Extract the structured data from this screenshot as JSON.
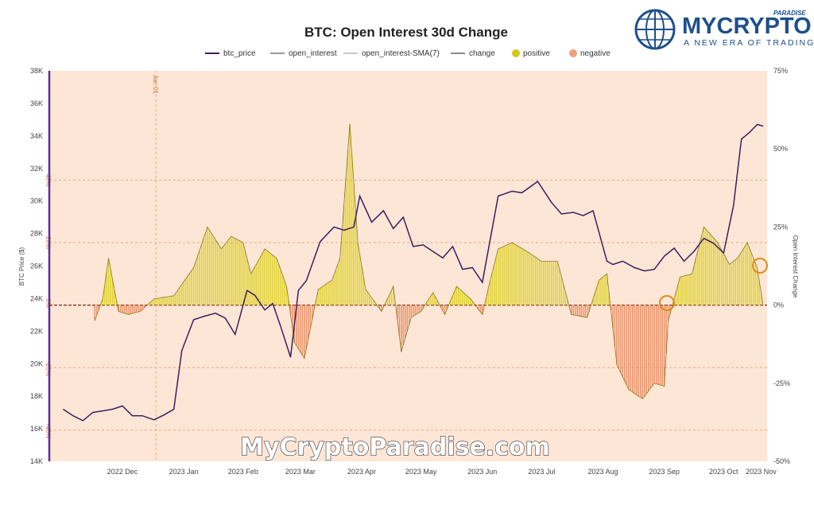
{
  "chart_data": {
    "type": "line",
    "title": "BTC: Open Interest 30d Change",
    "legend": [
      {
        "name": "btc_price",
        "color": "#3d1f5c",
        "kind": "line"
      },
      {
        "name": "open_interest",
        "color": "#9a9aa2",
        "kind": "line"
      },
      {
        "name": "open_interest-SMA(7)",
        "color": "#c8c8c8",
        "kind": "line"
      },
      {
        "name": "change",
        "color": "#8a8a8a",
        "kind": "line"
      },
      {
        "name": "positive",
        "color": "#d4c41a",
        "kind": "dot"
      },
      {
        "name": "negative",
        "color": "#f0a080",
        "kind": "dot"
      }
    ],
    "legend_position": "top-center",
    "ylabel_left": "BTC Price ($)",
    "ylabel_right": "Open Interest Change",
    "ylim_left": [
      14000,
      38000
    ],
    "ylim_right": [
      -50,
      75
    ],
    "left_ticks": [
      "38K",
      "36K",
      "34K",
      "32K",
      "30K",
      "28K",
      "26K",
      "24K",
      "22K",
      "20K",
      "18K",
      "16K",
      "14K"
    ],
    "right_ticks": [
      "75%",
      "50%",
      "25%",
      "0%",
      "-25%",
      "-50%"
    ],
    "x_ticks": [
      "2022 Dec",
      "2023 Jan",
      "2023 Feb",
      "2023 Mar",
      "2023 Apr",
      "2023 May",
      "2023 Jun",
      "2023 Jul",
      "2023 Aug",
      "2023 Sep",
      "2023 Oct",
      "2023 Nov"
    ],
    "annotation": "Jan 01",
    "grid_pct_labels": [
      "40%",
      "20%",
      "0%",
      "-20%",
      "-40%"
    ],
    "grid": true,
    "series": [
      {
        "name": "btc_price",
        "x": [
          "2022-11-15",
          "2022-11-20",
          "2022-11-25",
          "2022-11-30",
          "2022-12-05",
          "2022-12-10",
          "2022-12-15",
          "2022-12-20",
          "2022-12-25",
          "2022-12-31",
          "2023-01-05",
          "2023-01-10",
          "2023-01-14",
          "2023-01-20",
          "2023-01-25",
          "2023-01-31",
          "2023-02-05",
          "2023-02-10",
          "2023-02-16",
          "2023-02-20",
          "2023-02-25",
          "2023-03-01",
          "2023-03-05",
          "2023-03-10",
          "2023-03-14",
          "2023-03-18",
          "2023-03-25",
          "2023-04-01",
          "2023-04-06",
          "2023-04-11",
          "2023-04-14",
          "2023-04-20",
          "2023-04-26",
          "2023-05-01",
          "2023-05-06",
          "2023-05-11",
          "2023-05-16",
          "2023-05-21",
          "2023-05-26",
          "2023-05-31",
          "2023-06-05",
          "2023-06-10",
          "2023-06-15",
          "2023-06-20",
          "2023-06-23",
          "2023-06-30",
          "2023-07-05",
          "2023-07-13",
          "2023-07-20",
          "2023-07-25",
          "2023-07-31",
          "2023-08-05",
          "2023-08-10",
          "2023-08-17",
          "2023-08-20",
          "2023-08-25",
          "2023-08-31",
          "2023-09-05",
          "2023-09-10",
          "2023-09-15",
          "2023-09-20",
          "2023-09-25",
          "2023-09-30",
          "2023-10-05",
          "2023-10-10",
          "2023-10-15",
          "2023-10-20",
          "2023-10-24",
          "2023-10-28",
          "2023-11-01",
          "2023-11-04"
        ],
        "values": [
          17200,
          16800,
          16500,
          17000,
          17100,
          17200,
          17400,
          16800,
          16800,
          16550,
          16850,
          17200,
          20800,
          22700,
          22900,
          23100,
          22800,
          21800,
          24500,
          24200,
          23300,
          23700,
          22300,
          20400,
          24500,
          25100,
          27500,
          28400,
          28200,
          28400,
          30300,
          28700,
          29400,
          28300,
          29000,
          27200,
          27300,
          26900,
          26500,
          27200,
          25800,
          25900,
          25000,
          28300,
          30300,
          30600,
          30500,
          31200,
          29900,
          29200,
          29300,
          29100,
          29400,
          26300,
          26100,
          26300,
          25900,
          25700,
          25800,
          26600,
          27100,
          26300,
          26900,
          27700,
          27400,
          26800,
          29700,
          33800,
          34200,
          34700,
          34600
        ]
      },
      {
        "name": "change",
        "x": [
          "2022-12-01",
          "2022-12-05",
          "2022-12-08",
          "2022-12-13",
          "2022-12-18",
          "2022-12-24",
          "2022-12-31",
          "2023-01-10",
          "2023-01-20",
          "2023-01-27",
          "2023-02-03",
          "2023-02-08",
          "2023-02-14",
          "2023-02-18",
          "2023-02-25",
          "2023-03-03",
          "2023-03-08",
          "2023-03-12",
          "2023-03-17",
          "2023-03-24",
          "2023-03-31",
          "2023-04-04",
          "2023-04-09",
          "2023-04-13",
          "2023-04-17",
          "2023-04-25",
          "2023-05-01",
          "2023-05-05",
          "2023-05-10",
          "2023-05-15",
          "2023-05-21",
          "2023-05-27",
          "2023-06-02",
          "2023-06-09",
          "2023-06-15",
          "2023-06-19",
          "2023-06-23",
          "2023-06-30",
          "2023-07-08",
          "2023-07-15",
          "2023-07-23",
          "2023-07-30",
          "2023-08-07",
          "2023-08-13",
          "2023-08-17",
          "2023-08-22",
          "2023-08-28",
          "2023-09-04",
          "2023-09-10",
          "2023-09-15",
          "2023-09-17",
          "2023-09-23",
          "2023-09-29",
          "2023-10-05",
          "2023-10-12",
          "2023-10-18",
          "2023-10-22",
          "2023-10-27",
          "2023-11-01",
          "2023-11-04"
        ],
        "values": [
          -5,
          2,
          15,
          -2,
          -3,
          -2,
          2,
          3,
          12,
          25,
          18,
          22,
          20,
          10,
          18,
          15,
          6,
          -12,
          -17,
          5,
          8,
          15,
          58,
          20,
          5,
          -2,
          6,
          -15,
          -4,
          -2,
          4,
          -3,
          6,
          2,
          -3,
          8,
          18,
          20,
          17,
          14,
          14,
          -3,
          -4,
          8,
          10,
          -19,
          -27,
          -30,
          -25,
          -26,
          -5,
          9,
          10,
          25,
          20,
          13,
          15,
          20,
          12,
          0
        ]
      }
    ]
  },
  "watermark": "MyCryptoParadise.com",
  "logo": {
    "top": "PARADISE",
    "main": "MYCRYPTO",
    "tagline": "A NEW ERA OF TRADING"
  }
}
